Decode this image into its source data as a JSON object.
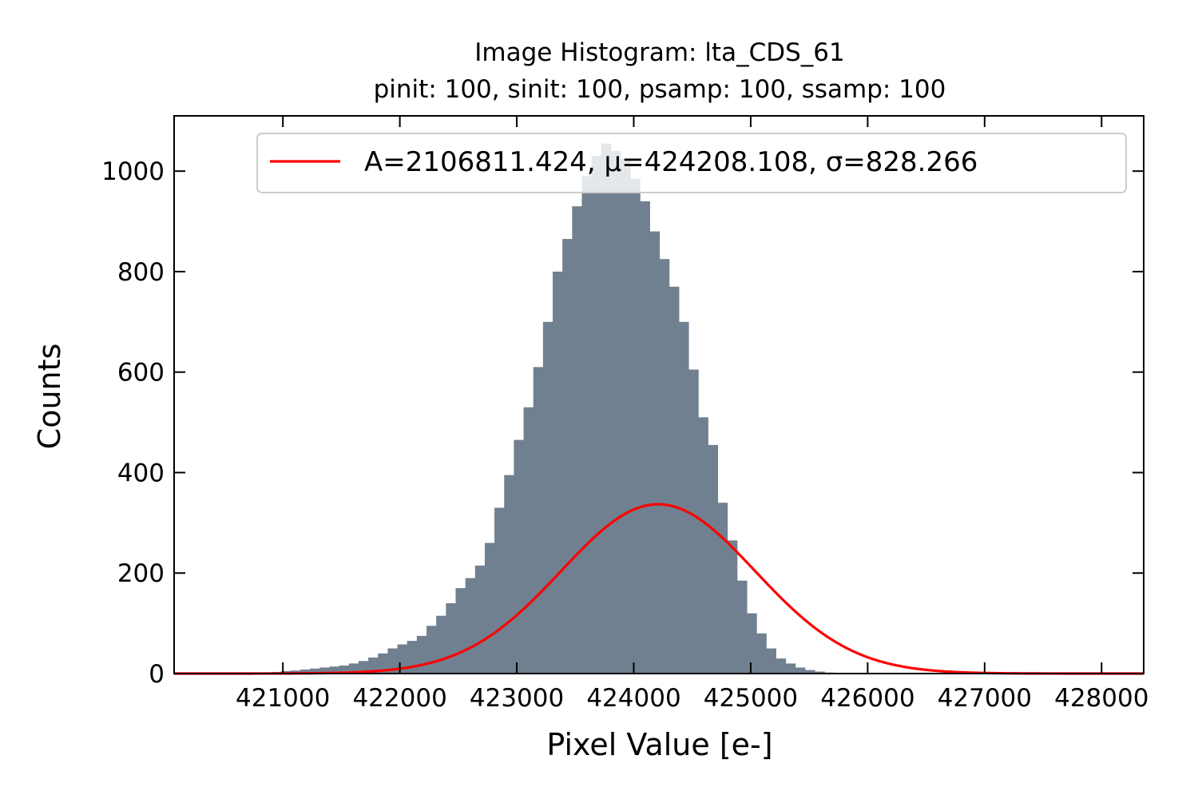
{
  "chart_data": {
    "type": "bar",
    "title": "Image Histogram: lta_CDS_61",
    "subtitle": "pinit: 100, sinit: 100, psamp: 100, ssamp: 100",
    "xlabel": "Pixel Value [e-]",
    "ylabel": "Counts",
    "xlim": [
      420070,
      428360
    ],
    "ylim": [
      0,
      1110
    ],
    "xticks": [
      421000,
      422000,
      423000,
      424000,
      425000,
      426000,
      427000,
      428000
    ],
    "yticks": [
      0,
      200,
      400,
      600,
      800,
      1000
    ],
    "grid": false,
    "legend_position": "top-right",
    "histogram": {
      "name": "histogram",
      "color": "#708090",
      "bin_width": 83,
      "x": [
        420070,
        420153,
        420236,
        420319,
        420402,
        420485,
        420568,
        420651,
        420734,
        420817,
        420900,
        420983,
        421066,
        421149,
        421232,
        421315,
        421398,
        421481,
        421564,
        421647,
        421730,
        421813,
        421896,
        421979,
        422062,
        422145,
        422228,
        422311,
        422394,
        422477,
        422560,
        422643,
        422726,
        422809,
        422892,
        422975,
        423058,
        423141,
        423224,
        423307,
        423390,
        423473,
        423556,
        423639,
        423722,
        423805,
        423888,
        423971,
        424054,
        424137,
        424220,
        424303,
        424386,
        424469,
        424552,
        424635,
        424718,
        424801,
        424884,
        424967,
        425050,
        425133,
        425216,
        425299,
        425382,
        425465,
        425548,
        425631,
        425714,
        425797,
        425880,
        425963,
        426046,
        426129,
        426212,
        426295,
        426378,
        426461,
        426544,
        426627,
        426710,
        426793,
        426876,
        426959,
        427042,
        427125,
        427208,
        427291,
        427374,
        427457,
        427540,
        427623,
        427706,
        427789,
        427872,
        427955,
        428038,
        428121,
        428204,
        428287
      ],
      "counts": [
        0,
        0,
        0,
        0,
        0,
        0,
        0,
        1,
        1,
        2,
        3,
        5,
        6,
        8,
        10,
        12,
        14,
        16,
        20,
        25,
        32,
        40,
        50,
        58,
        65,
        75,
        95,
        115,
        140,
        170,
        190,
        215,
        260,
        330,
        395,
        465,
        530,
        610,
        700,
        800,
        865,
        930,
        990,
        1030,
        1055,
        1040,
        1025,
        985,
        940,
        880,
        825,
        770,
        700,
        605,
        510,
        455,
        340,
        265,
        185,
        120,
        80,
        50,
        30,
        20,
        12,
        7,
        4,
        2,
        1,
        0,
        0,
        0,
        0,
        0,
        0,
        0,
        0,
        0,
        0,
        0,
        0,
        0,
        0,
        0,
        0,
        0,
        0,
        0,
        0,
        0,
        0,
        0,
        0,
        0,
        0,
        0,
        0,
        0,
        0,
        0
      ]
    },
    "fit": {
      "name": "A=2106811.424, μ=424208.108, σ=828.266",
      "color": "#ff0000",
      "A": 2106811.424,
      "mu": 424208.108,
      "sigma": 828.266
    }
  }
}
